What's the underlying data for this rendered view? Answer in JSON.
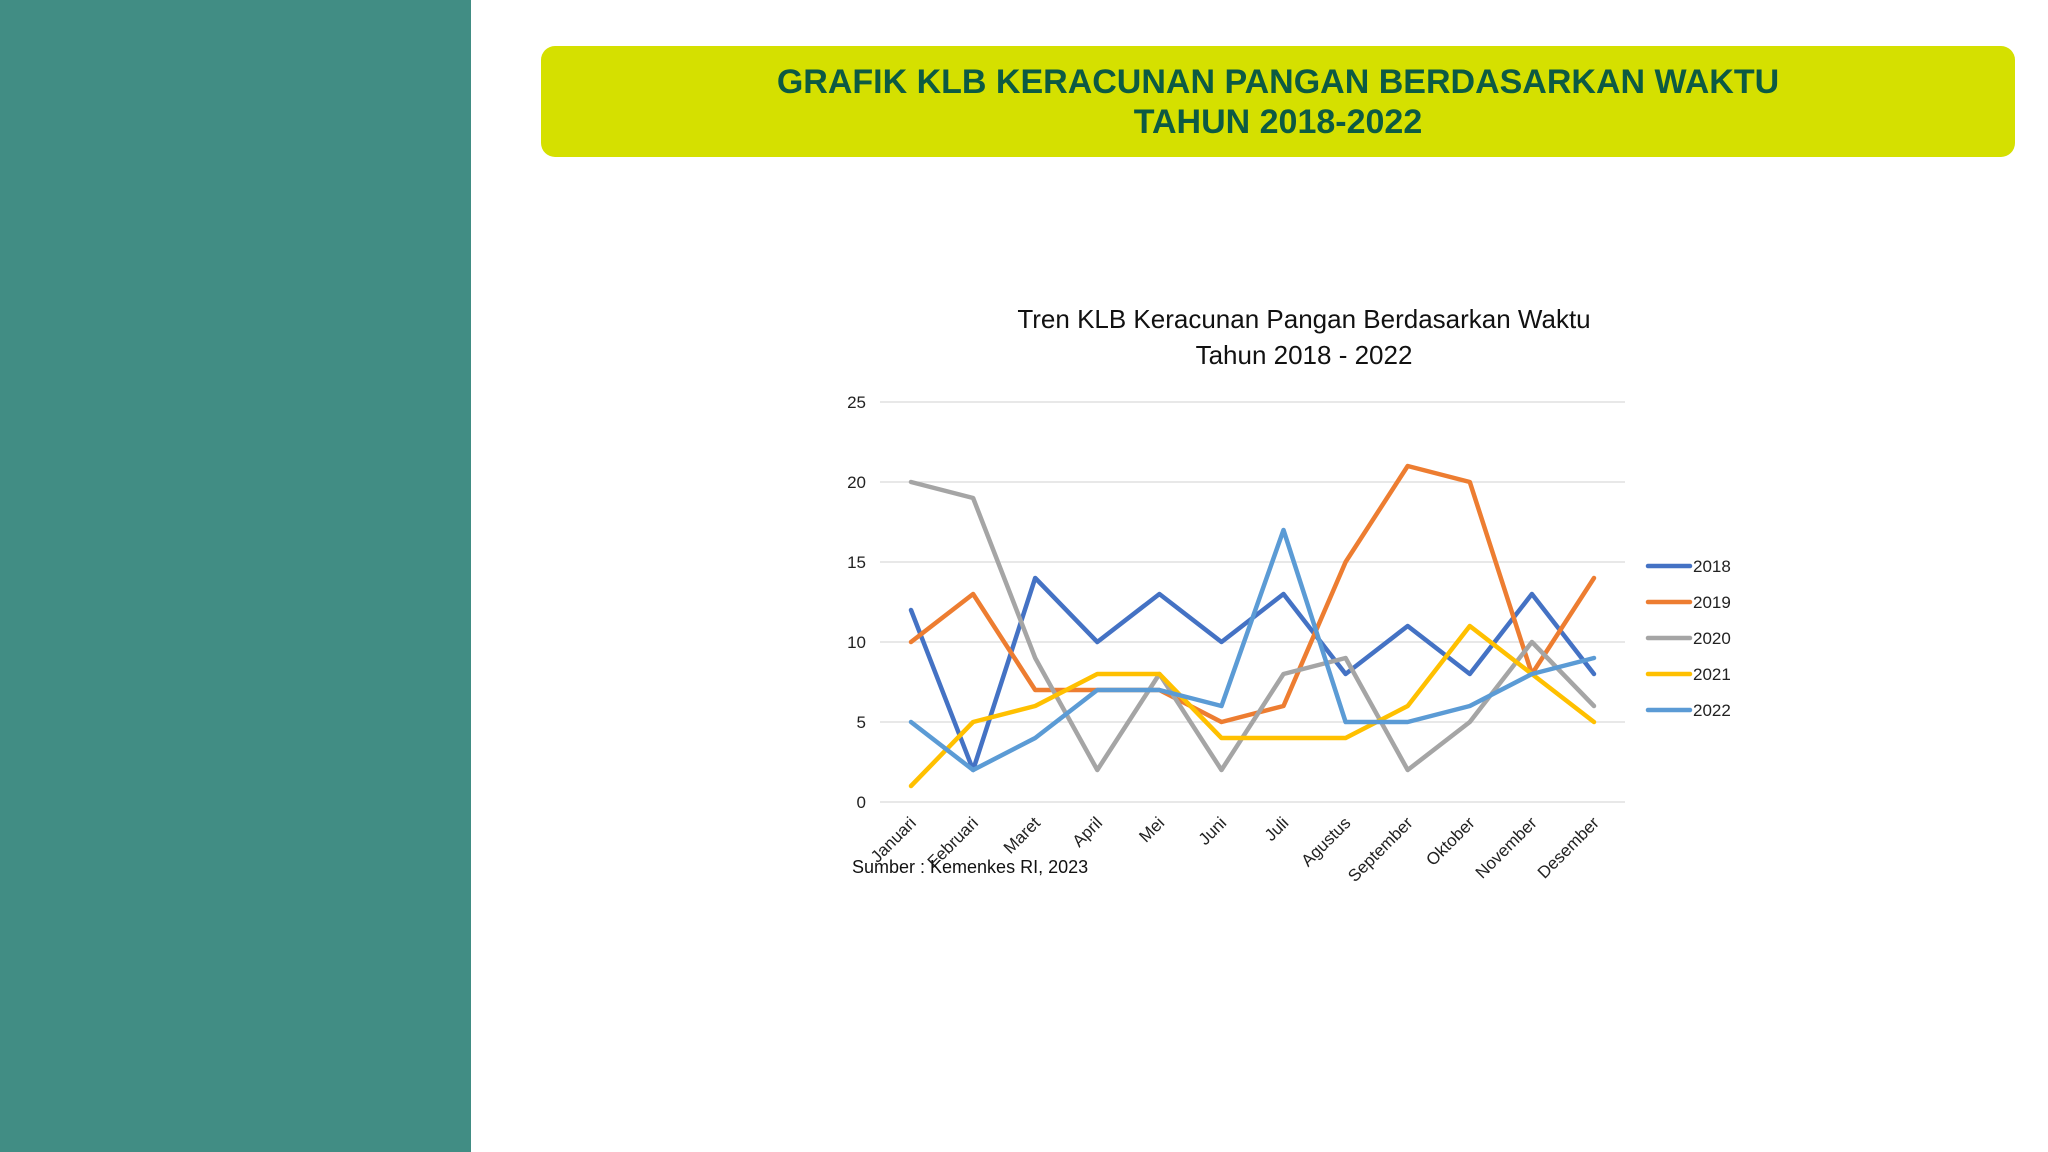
{
  "header": {
    "line1": "GRAFIK KLB KERACUNAN PANGAN BERDASARKAN WAKTU",
    "line2": "TAHUN 2018-2022"
  },
  "colors": {
    "left_panel": "#418d84",
    "banner": "#d5e000",
    "banner_text": "#0c5a43"
  },
  "source": "Sumber : Kemenkes RI, 2023",
  "chart_data": {
    "type": "line",
    "title": [
      "Tren KLB Keracunan Pangan Berdasarkan Waktu",
      "Tahun 2018 - 2022"
    ],
    "xlabel": "",
    "ylabel": "",
    "ylim": [
      0,
      25
    ],
    "yticks": [
      0,
      5,
      10,
      15,
      20,
      25
    ],
    "grid": true,
    "legend_position": "right",
    "categories": [
      "Januari",
      "Februari",
      "Maret",
      "April",
      "Mei",
      "Juni",
      "Juli",
      "Agustus",
      "September",
      "Oktober",
      "November",
      "Desember"
    ],
    "series": [
      {
        "name": "2018",
        "color": "#4472c4",
        "values": [
          12,
          2,
          14,
          10,
          13,
          10,
          13,
          8,
          11,
          8,
          13,
          8
        ]
      },
      {
        "name": "2019",
        "color": "#ed7d31",
        "values": [
          10,
          13,
          7,
          7,
          7,
          5,
          6,
          15,
          21,
          20,
          8,
          14
        ]
      },
      {
        "name": "2020",
        "color": "#a5a5a5",
        "values": [
          20,
          19,
          9,
          2,
          8,
          2,
          8,
          9,
          2,
          5,
          10,
          6
        ]
      },
      {
        "name": "2021",
        "color": "#ffc000",
        "values": [
          1,
          5,
          6,
          8,
          8,
          4,
          4,
          4,
          6,
          11,
          8,
          5
        ]
      },
      {
        "name": "2022",
        "color": "#5b9bd5",
        "values": [
          5,
          2,
          4,
          7,
          7,
          6,
          17,
          5,
          5,
          6,
          8,
          9
        ]
      }
    ]
  }
}
